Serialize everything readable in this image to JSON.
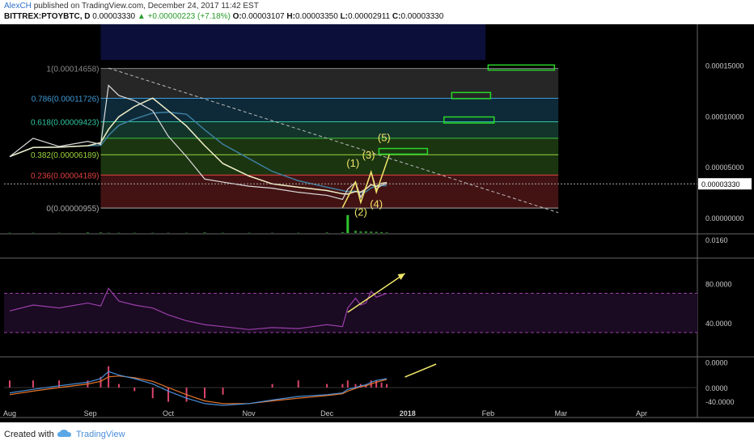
{
  "header": {
    "author": "AlexCH",
    "published": "published on TradingView.com, December 24, 2017 11:42 EST",
    "symbol": "BITTREX:PTOYBTC, D",
    "last": "0.00003330",
    "change": "▲ +0.00000223 (+7.18%)",
    "open_label": "O:",
    "open": "0.00003107",
    "high_label": "H:",
    "high": "0.00003350",
    "low_label": "L:",
    "low": "0.00002911",
    "close_label": "C:",
    "close": "0.00003330"
  },
  "footer": {
    "created_with": "Created with",
    "brand": "TradingView"
  },
  "colors": {
    "background": "#000000",
    "price_line": "#dcdcdc",
    "ma_fast": "#f2f0c8",
    "ma_slow": "#3d7fa0",
    "fib_band_1": "#2a2a2a",
    "fib_band_2": "#0f2f3f",
    "fib_band_3": "#153a30",
    "fib_band_4": "#1e3b12",
    "fib_band_5": "#4a1515",
    "target_box": "#29d629",
    "annotation": "#f0e66a",
    "rsi_line": "#9a3fa8",
    "macd_line": "#4a90d9",
    "signal_line": "#e8752b",
    "hist_up": "#d9456b"
  },
  "chart_data": [
    {
      "type": "line",
      "pane": "price",
      "ylim": [
        -1.5e-05,
        0.00019
      ],
      "y_ticks": [
        "0.00015000",
        "0.00010000",
        "0.00005000",
        "0.00000000"
      ],
      "y_tick_values": [
        0.00015,
        0.0001,
        5e-05,
        0.0
      ],
      "x_ticks": [
        "Aug",
        "Sep",
        "Oct",
        "Nov",
        "Dec",
        "2018",
        "Feb",
        "Mar",
        "Apr"
      ],
      "x": [
        "2017-08-01",
        "2017-08-10",
        "2017-08-20",
        "2017-08-31",
        "2017-09-05",
        "2017-09-08",
        "2017-09-12",
        "2017-09-18",
        "2017-09-25",
        "2017-10-01",
        "2017-10-08",
        "2017-10-15",
        "2017-10-22",
        "2017-11-01",
        "2017-11-10",
        "2017-11-20",
        "2017-12-01",
        "2017-12-07",
        "2017-12-09",
        "2017-12-12",
        "2017-12-14",
        "2017-12-16",
        "2017-12-18",
        "2017-12-20",
        "2017-12-22",
        "2017-12-24"
      ],
      "series": [
        {
          "values": [
            6e-05,
            7.8e-05,
            7e-05,
            7.5e-05,
            7.2e-05,
            0.00013,
            0.00012,
            0.000115,
            0.000105,
            8e-05,
            6e-05,
            3.8e-05,
            3.5e-05,
            3.1e-05,
            2.9e-05,
            2.5e-05,
            2.2e-05,
            1.8e-05,
            2.8e-05,
            3.5e-05,
            2e-05,
            3e-05,
            4.5e-05,
            2.8e-05,
            3.2e-05,
            3.33e-05
          ]
        }
      ],
      "last_price_label": "0.00003330",
      "last_price_value": 3.33e-05,
      "fib_levels": [
        {
          "ratio": "1",
          "label": "1(0.00014658)",
          "value": 0.00014658
        },
        {
          "ratio": "0.786",
          "label": "0.786(0.00011726)",
          "value": 0.00011726
        },
        {
          "ratio": "0.618",
          "label": "0.618(0.00009423)",
          "value": 9.423e-05
        },
        {
          "ratio": "0.5",
          "label": "",
          "value": 7.806e-05
        },
        {
          "ratio": "0.382",
          "label": "0.382(0.00006189)",
          "value": 6.189e-05
        },
        {
          "ratio": "0.236",
          "label": "0.236(0.00004189)",
          "value": 4.189e-05
        },
        {
          "ratio": "0",
          "label": "0(0.00000955)",
          "value": 9.55e-06
        }
      ],
      "wave_labels": [
        "(1)",
        "(2)",
        "(3)",
        "(4)",
        "(5)"
      ]
    },
    {
      "type": "bar",
      "pane": "volume",
      "y_ticks": [
        "0.0160"
      ],
      "values": [
        0.001,
        0.001,
        0.001,
        0.002,
        0.002,
        0.001,
        0.001,
        0.001,
        0.001,
        0.001,
        0.001,
        0.002,
        0.001,
        0.001,
        0.001,
        0.001,
        0.002,
        0.003,
        0.06,
        0.008,
        0.006,
        0.006,
        0.005,
        0.004,
        0.003,
        0.002
      ]
    },
    {
      "type": "line",
      "pane": "rsi",
      "ylim": [
        -50,
        105
      ],
      "y_ticks": [
        "80.0000",
        "40.0000",
        "0.0000",
        "-40.0000"
      ],
      "y_tick_values": [
        80,
        40,
        0,
        -40
      ],
      "bands": [
        70,
        30
      ],
      "values": [
        52,
        58,
        55,
        60,
        57,
        75,
        62,
        58,
        55,
        48,
        42,
        38,
        36,
        33,
        35,
        34,
        38,
        36,
        55,
        65,
        58,
        60,
        72,
        66,
        68,
        70
      ]
    },
    {
      "type": "line",
      "pane": "macd",
      "y_ticks": [
        "0.0000"
      ],
      "series": [
        {
          "values": [
            -0.3,
            -0.1,
            0.1,
            0.3,
            0.5,
            0.9,
            0.7,
            0.5,
            0.2,
            -0.2,
            -0.6,
            -0.9,
            -1.0,
            -0.9,
            -0.7,
            -0.5,
            -0.4,
            -0.3,
            -0.1,
            0.0,
            0.1,
            0.15,
            0.3,
            0.4,
            0.45,
            0.5
          ]
        },
        {
          "values": [
            -0.4,
            -0.2,
            0.0,
            0.2,
            0.35,
            0.6,
            0.65,
            0.55,
            0.35,
            0.0,
            -0.4,
            -0.75,
            -0.9,
            -0.9,
            -0.75,
            -0.6,
            -0.45,
            -0.35,
            -0.2,
            -0.05,
            0.05,
            0.1,
            0.2,
            0.3,
            0.38,
            0.45
          ]
        }
      ]
    }
  ]
}
